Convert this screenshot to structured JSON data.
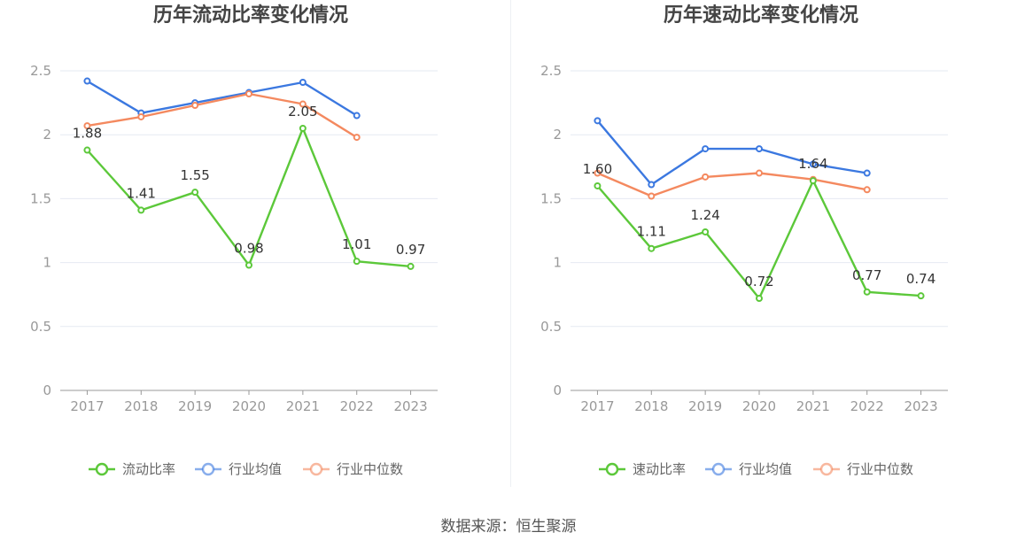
{
  "colors": {
    "ratio": "#5cc83a",
    "industry_avg": "#3b78e0",
    "industry_median": "#f4895f",
    "axis": "#999999",
    "grid": "#e6eaf2"
  },
  "charts": [
    {
      "title": "历年流动比率变化情况",
      "legend": [
        "流动比率",
        "行业均值",
        "行业中位数"
      ]
    },
    {
      "title": "历年速动比率变化情况",
      "legend": [
        "速动比率",
        "行业均值",
        "行业中位数"
      ]
    }
  ],
  "footer": {
    "source": "数据来源：恒生聚源"
  },
  "chart_data": [
    {
      "type": "line",
      "title": "历年流动比率变化情况",
      "categories": [
        "2017",
        "2018",
        "2019",
        "2020",
        "2021",
        "2022",
        "2023"
      ],
      "ylim": [
        0,
        2.5
      ],
      "yticks": [
        "0",
        "0.5",
        "1",
        "1.5",
        "2",
        "2.5"
      ],
      "grid": true,
      "legend_position": "bottom",
      "series": [
        {
          "name": "流动比率",
          "values": [
            1.88,
            1.41,
            1.55,
            0.98,
            2.05,
            1.01,
            0.97
          ],
          "labels": [
            "1.88",
            "1.41",
            "1.55",
            "0.98",
            "2.05",
            "1.01",
            "0.97"
          ]
        },
        {
          "name": "行业均值",
          "values": [
            2.42,
            2.17,
            2.25,
            2.33,
            2.41,
            2.15,
            null
          ]
        },
        {
          "name": "行业中位数",
          "values": [
            2.07,
            2.14,
            2.23,
            2.32,
            2.24,
            1.98,
            null
          ]
        }
      ]
    },
    {
      "type": "line",
      "title": "历年速动比率变化情况",
      "categories": [
        "2017",
        "2018",
        "2019",
        "2020",
        "2021",
        "2022",
        "2023"
      ],
      "ylim": [
        0,
        2.5
      ],
      "yticks": [
        "0",
        "0.5",
        "1",
        "1.5",
        "2",
        "2.5"
      ],
      "grid": true,
      "legend_position": "bottom",
      "series": [
        {
          "name": "速动比率",
          "values": [
            1.6,
            1.11,
            1.24,
            0.72,
            1.64,
            0.77,
            0.74
          ],
          "labels": [
            "1.60",
            "1.11",
            "1.24",
            "0.72",
            "1.64",
            "0.77",
            "0.74"
          ]
        },
        {
          "name": "行业均值",
          "values": [
            2.11,
            1.61,
            1.89,
            1.89,
            1.77,
            1.7,
            null
          ]
        },
        {
          "name": "行业中位数",
          "values": [
            1.7,
            1.52,
            1.67,
            1.7,
            1.65,
            1.57,
            null
          ]
        }
      ]
    }
  ]
}
